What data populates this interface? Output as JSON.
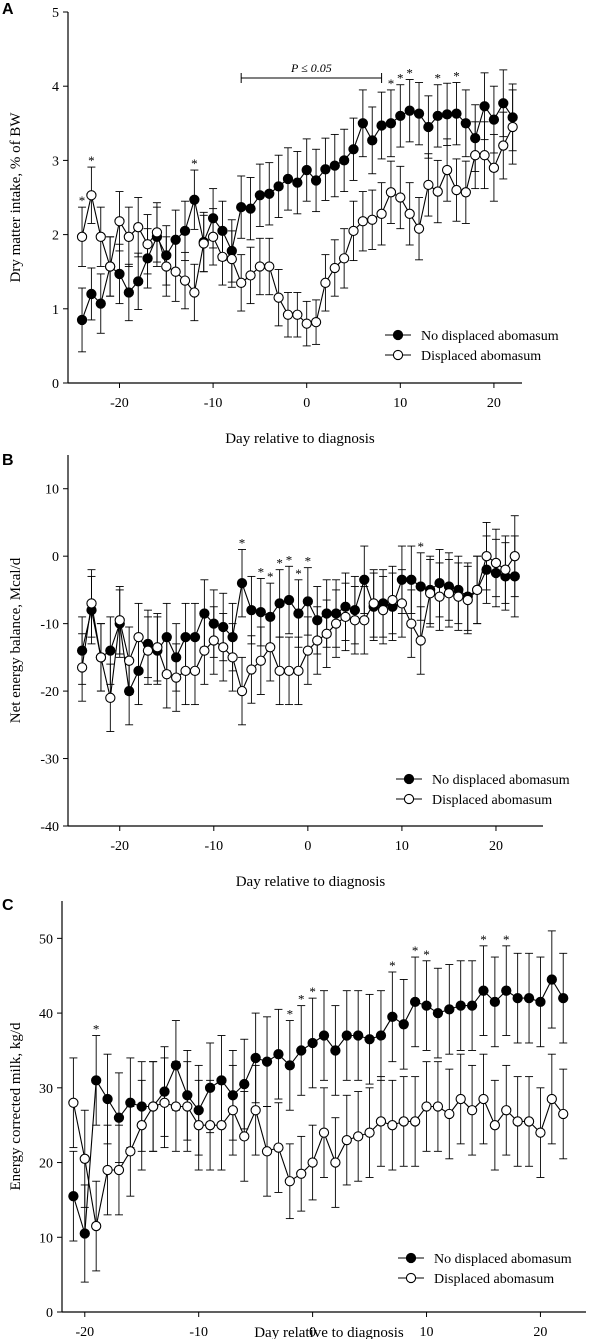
{
  "figure": {
    "panels": [
      "A",
      "B",
      "C"
    ],
    "pvalue_label": "P ≤ 0.05",
    "star": "*"
  },
  "chart_data": [
    {
      "panel": "A",
      "type": "line",
      "title": "",
      "xlabel": "Day relative to diagnosis",
      "ylabel": "Dry matter intake, % of BW",
      "xlim": [
        -25.5,
        23
      ],
      "ylim": [
        0,
        5
      ],
      "xticks": [
        -20,
        -10,
        0,
        10,
        20
      ],
      "yticks": [
        0,
        1,
        2,
        3,
        4,
        5
      ],
      "legend_position": "bottom-right",
      "annotation": {
        "text": "P ≤ 0.05",
        "x_start": -7,
        "x_end": 8
      },
      "series": [
        {
          "name": "No displaced abomasum",
          "marker": "filled",
          "x": [
            -24,
            -23,
            -22,
            -21,
            -20,
            -19,
            -18,
            -17,
            -16,
            -15,
            -14,
            -13,
            -12,
            -11,
            -10,
            -9,
            -8,
            -7,
            -6,
            -5,
            -4,
            -3,
            -2,
            -1,
            0,
            1,
            2,
            3,
            4,
            5,
            6,
            7,
            8,
            9,
            10,
            11,
            12,
            13,
            14,
            15,
            16,
            17,
            18,
            19,
            20,
            21,
            22
          ],
          "y": [
            0.85,
            1.2,
            1.07,
            1.57,
            1.47,
            1.22,
            1.37,
            1.68,
            1.97,
            1.72,
            1.93,
            2.05,
            2.47,
            1.9,
            2.22,
            2.05,
            1.78,
            2.37,
            2.35,
            2.53,
            2.55,
            2.65,
            2.75,
            2.7,
            2.87,
            2.73,
            2.88,
            2.93,
            3.0,
            3.15,
            3.5,
            3.27,
            3.47,
            3.5,
            3.6,
            3.67,
            3.63,
            3.45,
            3.6,
            3.62,
            3.63,
            3.5,
            3.3,
            3.73,
            3.55,
            3.77,
            3.58
          ],
          "err": [
            0.43,
            0.35,
            0.4,
            0.4,
            0.4,
            0.38,
            0.38,
            0.4,
            0.4,
            0.4,
            0.4,
            0.4,
            0.4,
            0.4,
            0.4,
            0.4,
            0.42,
            0.42,
            0.42,
            0.42,
            0.42,
            0.42,
            0.42,
            0.42,
            0.42,
            0.42,
            0.42,
            0.42,
            0.42,
            0.42,
            0.45,
            0.45,
            0.45,
            0.45,
            0.42,
            0.42,
            0.42,
            0.42,
            0.42,
            0.42,
            0.42,
            0.45,
            0.45,
            0.45,
            0.45,
            0.45,
            0.45
          ]
        },
        {
          "name": "Displaced abomasum",
          "marker": "open",
          "x": [
            -24,
            -23,
            -22,
            -21,
            -20,
            -19,
            -18,
            -17,
            -16,
            -15,
            -14,
            -13,
            -12,
            -11,
            -10,
            -9,
            -8,
            -7,
            -6,
            -5,
            -4,
            -3,
            -2,
            -1,
            0,
            1,
            2,
            3,
            4,
            5,
            6,
            7,
            8,
            9,
            10,
            11,
            12,
            13,
            14,
            15,
            16,
            17,
            18,
            19,
            20,
            21,
            22
          ],
          "y": [
            1.97,
            2.53,
            1.97,
            1.57,
            2.18,
            1.97,
            2.1,
            1.87,
            2.03,
            1.57,
            1.5,
            1.38,
            1.22,
            1.88,
            1.97,
            1.7,
            1.67,
            1.35,
            1.45,
            1.57,
            1.57,
            1.15,
            0.92,
            0.92,
            0.8,
            0.82,
            1.35,
            1.55,
            1.68,
            2.05,
            2.18,
            2.2,
            2.28,
            2.57,
            2.5,
            2.28,
            2.08,
            2.67,
            2.58,
            2.87,
            2.6,
            2.57,
            3.07,
            3.07,
            2.9,
            3.2,
            3.45
          ],
          "err": [
            0.4,
            0.38,
            0.4,
            0.4,
            0.4,
            0.4,
            0.4,
            0.4,
            0.4,
            0.4,
            0.4,
            0.38,
            0.38,
            0.38,
            0.38,
            0.38,
            0.38,
            0.38,
            0.38,
            0.38,
            0.38,
            0.38,
            0.3,
            0.3,
            0.3,
            0.3,
            0.38,
            0.38,
            0.4,
            0.4,
            0.4,
            0.4,
            0.42,
            0.42,
            0.42,
            0.42,
            0.42,
            0.42,
            0.42,
            0.42,
            0.42,
            0.42,
            0.45,
            0.45,
            0.45,
            0.45,
            0.5
          ]
        }
      ],
      "significance_days": [
        -24,
        -23,
        -12,
        9,
        10,
        11,
        14,
        16
      ]
    },
    {
      "panel": "B",
      "type": "line",
      "title": "",
      "xlabel": "Day relative to diagnosis",
      "ylabel": "Net energy balance, Mcal/d",
      "xlim": [
        -25.5,
        25
      ],
      "ylim": [
        -40,
        15
      ],
      "xticks": [
        -20,
        -10,
        0,
        10,
        20
      ],
      "yticks": [
        -40,
        -30,
        -20,
        -10,
        0,
        10
      ],
      "legend_position": "bottom-right",
      "series": [
        {
          "name": "No displaced abomasum",
          "marker": "filled",
          "x": [
            -24,
            -23,
            -22,
            -21,
            -20,
            -19,
            -18,
            -17,
            -16,
            -15,
            -14,
            -13,
            -12,
            -11,
            -10,
            -9,
            -8,
            -7,
            -6,
            -5,
            -4,
            -3,
            -2,
            -1,
            0,
            1,
            2,
            3,
            4,
            5,
            6,
            7,
            8,
            9,
            10,
            11,
            12,
            13,
            14,
            15,
            16,
            17,
            18,
            19,
            20,
            21,
            22
          ],
          "y": [
            -14,
            -8,
            -15,
            -14,
            -10,
            -20,
            -17,
            -13,
            -14,
            -12,
            -15,
            -12,
            -12,
            -8.5,
            -10,
            -10.5,
            -12,
            -4,
            -8,
            -8.3,
            -9,
            -7,
            -6.5,
            -8.5,
            -6.7,
            -9.5,
            -8.5,
            -8.5,
            -7.5,
            -8,
            -3.5,
            -7.5,
            -7,
            -7.5,
            -3.5,
            -3.5,
            -4.5,
            -5,
            -4,
            -4.5,
            -5,
            -6,
            -5,
            -2,
            -2.5,
            -3,
            -3
          ],
          "err": [
            5,
            5,
            5,
            5,
            5,
            5,
            5,
            5,
            5,
            5,
            5,
            5,
            5,
            5,
            5,
            5,
            5,
            5,
            5,
            5,
            5,
            5,
            5,
            5,
            5,
            5,
            5,
            5,
            5,
            5,
            5,
            5,
            5,
            5,
            5,
            5,
            5,
            5,
            5,
            5,
            5,
            5,
            5,
            5,
            5,
            5,
            6
          ]
        },
        {
          "name": "Displaced abomasum",
          "marker": "open",
          "x": [
            -24,
            -23,
            -22,
            -21,
            -20,
            -19,
            -18,
            -17,
            -16,
            -15,
            -14,
            -13,
            -12,
            -11,
            -10,
            -9,
            -8,
            -7,
            -6,
            -5,
            -4,
            -3,
            -2,
            -1,
            0,
            1,
            2,
            3,
            4,
            5,
            6,
            7,
            8,
            9,
            10,
            11,
            12,
            13,
            14,
            15,
            16,
            17,
            18,
            19,
            20,
            21,
            22
          ],
          "y": [
            -16.5,
            -7,
            -15,
            -21,
            -9.5,
            -15.5,
            -12,
            -14,
            -13.5,
            -17.5,
            -18,
            -17,
            -17,
            -14,
            -12.5,
            -13.5,
            -15,
            -20,
            -16.8,
            -15.5,
            -13.5,
            -17,
            -17,
            -17,
            -14,
            -12.5,
            -11.5,
            -10,
            -9,
            -9.5,
            -9.5,
            -7,
            -8,
            -6.5,
            -7,
            -10,
            -12.5,
            -5.5,
            -6,
            -5.5,
            -6,
            -6.5,
            -5,
            0,
            -1,
            -2,
            0
          ],
          "err": [
            5,
            5,
            5,
            5,
            5,
            5,
            5,
            5,
            5,
            5,
            5,
            5,
            5,
            5,
            5,
            5,
            5,
            5,
            5,
            5,
            5,
            5,
            5,
            5,
            5,
            5,
            5,
            5,
            5,
            5,
            5,
            5,
            5,
            5,
            5,
            5,
            5,
            5,
            5,
            5,
            5,
            5,
            5,
            5,
            5,
            5,
            6
          ]
        }
      ],
      "significance_days": [
        -7,
        -5,
        -4,
        -3,
        -2,
        -1,
        0,
        12
      ]
    },
    {
      "panel": "C",
      "type": "line",
      "title": "",
      "xlabel": "Day relative to diagnosis",
      "ylabel": "Energy corrected milk, kg/d",
      "xlim": [
        -22,
        24
      ],
      "ylim": [
        0,
        55
      ],
      "xticks": [
        -20,
        -10,
        0,
        10,
        20
      ],
      "yticks": [
        0,
        10,
        20,
        30,
        40,
        50
      ],
      "legend_position": "bottom-right",
      "series": [
        {
          "name": "No displaced abomasum",
          "marker": "filled",
          "x": [
            -21,
            -20,
            -19,
            -18,
            -17,
            -16,
            -15,
            -14,
            -13,
            -12,
            -11,
            -10,
            -9,
            -8,
            -7,
            -6,
            -5,
            -4,
            -3,
            -2,
            -1,
            0,
            1,
            2,
            3,
            4,
            5,
            6,
            7,
            8,
            9,
            10,
            11,
            12,
            13,
            14,
            15,
            16,
            17,
            18,
            19,
            20,
            21,
            22
          ],
          "y": [
            15.5,
            10.5,
            31,
            28.5,
            26,
            28,
            27.5,
            27.5,
            29.5,
            33,
            29,
            27,
            30,
            31,
            29,
            30.5,
            34,
            33.5,
            34.5,
            33,
            35,
            36,
            37,
            35,
            37,
            37,
            36.5,
            37,
            39.5,
            38.5,
            41.5,
            41,
            40,
            40.5,
            41,
            41,
            43,
            41.5,
            43,
            42,
            42,
            41.5,
            44.5,
            42
          ],
          "err": [
            6,
            6.5,
            6,
            6,
            6,
            6,
            6,
            6,
            6,
            6,
            6,
            6,
            6,
            6,
            6,
            6,
            6,
            6,
            6,
            6,
            6,
            6,
            6,
            6,
            6,
            6,
            6,
            6,
            6,
            6,
            6,
            6,
            6,
            6,
            6,
            6,
            6,
            6,
            6,
            6,
            6,
            6,
            6.5,
            6
          ]
        },
        {
          "name": "Displaced abomasum",
          "marker": "open",
          "x": [
            -21,
            -20,
            -19,
            -18,
            -17,
            -16,
            -15,
            -14,
            -13,
            -12,
            -11,
            -10,
            -9,
            -8,
            -7,
            -6,
            -5,
            -4,
            -3,
            -2,
            -1,
            0,
            1,
            2,
            3,
            4,
            5,
            6,
            7,
            8,
            9,
            10,
            11,
            12,
            13,
            14,
            15,
            16,
            17,
            18,
            19,
            20,
            21,
            22
          ],
          "y": [
            28,
            20.5,
            11.5,
            19,
            19,
            21.5,
            25,
            27.5,
            28,
            27.5,
            27.5,
            25,
            25,
            25,
            27,
            23.5,
            27,
            21.5,
            22,
            17.5,
            18.5,
            20,
            24,
            20,
            23,
            23.5,
            24,
            25.5,
            25,
            25.5,
            25.5,
            27.5,
            27.5,
            26.5,
            28.5,
            27,
            28.5,
            25,
            27,
            25.5,
            25.5,
            24,
            28.5,
            26.5
          ],
          "err": [
            6,
            6.5,
            6,
            6,
            6,
            6,
            6,
            6,
            6,
            6,
            6,
            6,
            6,
            6,
            6,
            6,
            6,
            6,
            6,
            5,
            5,
            5,
            6,
            6,
            6,
            6,
            6,
            6,
            6,
            6,
            6,
            6,
            6,
            6,
            6,
            6,
            6,
            6,
            6,
            6,
            6,
            6,
            6,
            6
          ]
        }
      ],
      "significance_days": [
        -19,
        -2,
        -1,
        0,
        7,
        9,
        10,
        15,
        17
      ]
    }
  ]
}
